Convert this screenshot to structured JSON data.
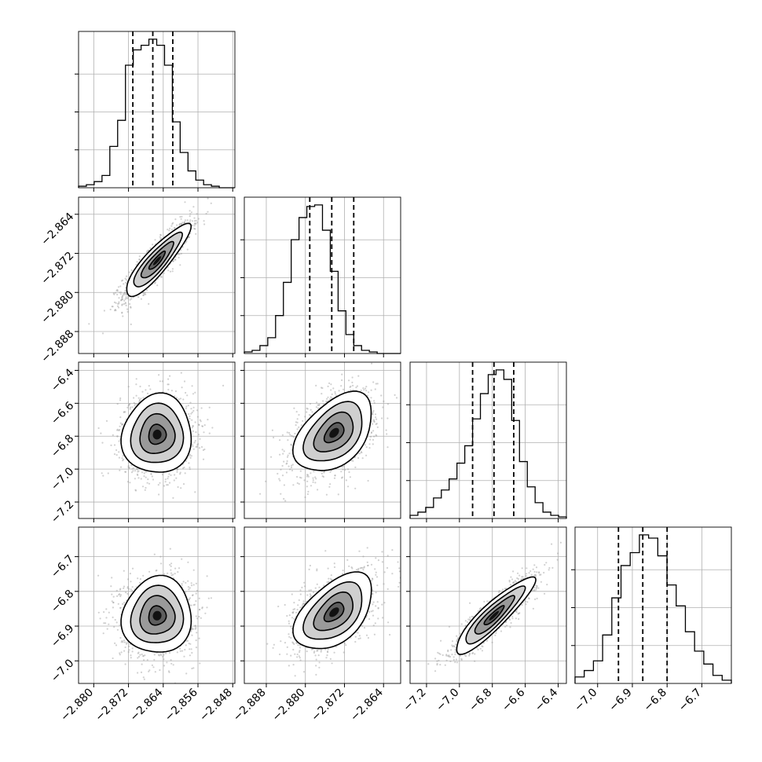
{
  "chart_data": {
    "type": "corner",
    "grid": true,
    "quantiles": [
      0.16,
      0.5,
      0.84
    ],
    "colors": {
      "hist": "#000000",
      "quantile": "#000000",
      "points": "#9a9a9a",
      "contour": "#000000",
      "grid": "#b0b0b0"
    },
    "params": [
      {
        "range": [
          -2.8835,
          -2.8475
        ],
        "x_ticks": [
          -2.88,
          -2.872,
          -2.864,
          -2.856,
          -2.848
        ],
        "x_tick_labels": [
          "−2.880",
          "−2.872",
          "−2.864",
          "−2.856",
          "−2.848"
        ],
        "y_ticks": [],
        "y_tick_labels": [],
        "quantile_values": [
          -2.871,
          -2.8664,
          -2.8618
        ],
        "hist_counts": [
          0.01,
          0.02,
          0.04,
          0.08,
          0.27,
          0.44,
          0.8,
          0.9,
          0.93,
          0.97,
          0.93,
          0.8,
          0.43,
          0.23,
          0.11,
          0.05,
          0.02,
          0.01,
          0.0,
          0.0
        ]
      },
      {
        "range": [
          -2.8925,
          -2.8605
        ],
        "x_ticks": [
          -2.888,
          -2.88,
          -2.872,
          -2.864
        ],
        "x_tick_labels": [
          "−2.888",
          "−2.880",
          "−2.872",
          "−2.864"
        ],
        "y_ticks": [
          -2.864,
          -2.872,
          -2.88,
          -2.888
        ],
        "y_tick_labels": [
          "−2.864",
          "−2.872",
          "−2.880",
          "−2.888"
        ],
        "quantile_values": [
          -2.8791,
          -2.8746,
          -2.8701
        ],
        "hist_counts": [
          0.01,
          0.02,
          0.05,
          0.1,
          0.24,
          0.45,
          0.72,
          0.86,
          0.93,
          0.94,
          0.78,
          0.52,
          0.27,
          0.12,
          0.05,
          0.02,
          0.01,
          0.0,
          0.0,
          0.0
        ]
      },
      {
        "range": [
          -7.3,
          -6.35
        ],
        "x_ticks": [
          -7.2,
          -7.0,
          -6.8,
          -6.6,
          -6.4
        ],
        "x_tick_labels": [
          "−7.2",
          "−7.0",
          "−6.8",
          "−6.6",
          "−6.4"
        ],
        "y_ticks": [
          -6.4,
          -6.6,
          -6.8,
          -7.0,
          -7.2
        ],
        "y_tick_labels": [
          "−6.4",
          "−6.6",
          "−6.8",
          "−7.0",
          "−7.2"
        ],
        "quantile_values": [
          -6.92,
          -6.79,
          -6.67
        ],
        "hist_counts": [
          0.02,
          0.04,
          0.07,
          0.13,
          0.18,
          0.25,
          0.35,
          0.46,
          0.63,
          0.79,
          0.91,
          0.94,
          0.88,
          0.62,
          0.36,
          0.2,
          0.1,
          0.04,
          0.02,
          0.01
        ]
      },
      {
        "range": [
          -7.065,
          -6.615
        ],
        "x_ticks": [
          -7.0,
          -6.9,
          -6.8,
          -6.7
        ],
        "x_tick_labels": [
          "−7.0",
          "−6.9",
          "−6.8",
          "−6.7"
        ],
        "y_ticks": [
          -6.7,
          -6.8,
          -6.9,
          -7.0
        ],
        "y_tick_labels": [
          "−6.7",
          "−6.8",
          "−6.9",
          "−7.0"
        ],
        "quantile_values": [
          -6.94,
          -6.87,
          -6.8
        ],
        "hist_counts": [
          0.04,
          0.08,
          0.14,
          0.3,
          0.53,
          0.73,
          0.81,
          0.92,
          0.9,
          0.79,
          0.61,
          0.48,
          0.32,
          0.2,
          0.12,
          0.05,
          0.02
        ]
      }
    ],
    "pairs": [
      {
        "x_param": 0,
        "y_param": 1,
        "center": [
          -2.8654,
          -2.8735
        ],
        "sd": [
          0.0037,
          0.0037
        ],
        "correlation": 0.88
      },
      {
        "x_param": 0,
        "y_param": 2,
        "center": [
          -2.8654,
          -6.79
        ],
        "sd": [
          0.004,
          0.12
        ],
        "correlation": 0.05
      },
      {
        "x_param": 1,
        "y_param": 2,
        "center": [
          -2.8741,
          -6.78
        ],
        "sd": [
          0.004,
          0.12
        ],
        "correlation": 0.45
      },
      {
        "x_param": 0,
        "y_param": 3,
        "center": [
          -2.8654,
          -6.87
        ],
        "sd": [
          0.004,
          0.055
        ],
        "correlation": 0.05
      },
      {
        "x_param": 1,
        "y_param": 3,
        "center": [
          -2.8741,
          -6.86
        ],
        "sd": [
          0.004,
          0.055
        ],
        "correlation": 0.5
      },
      {
        "x_param": 2,
        "y_param": 3,
        "center": [
          -6.79,
          -6.87
        ],
        "sd": [
          0.12,
          0.055
        ],
        "correlation": 0.9
      }
    ],
    "contour_levels_sigma": [
      0.5,
      1.0,
      1.5,
      2.0
    ]
  }
}
